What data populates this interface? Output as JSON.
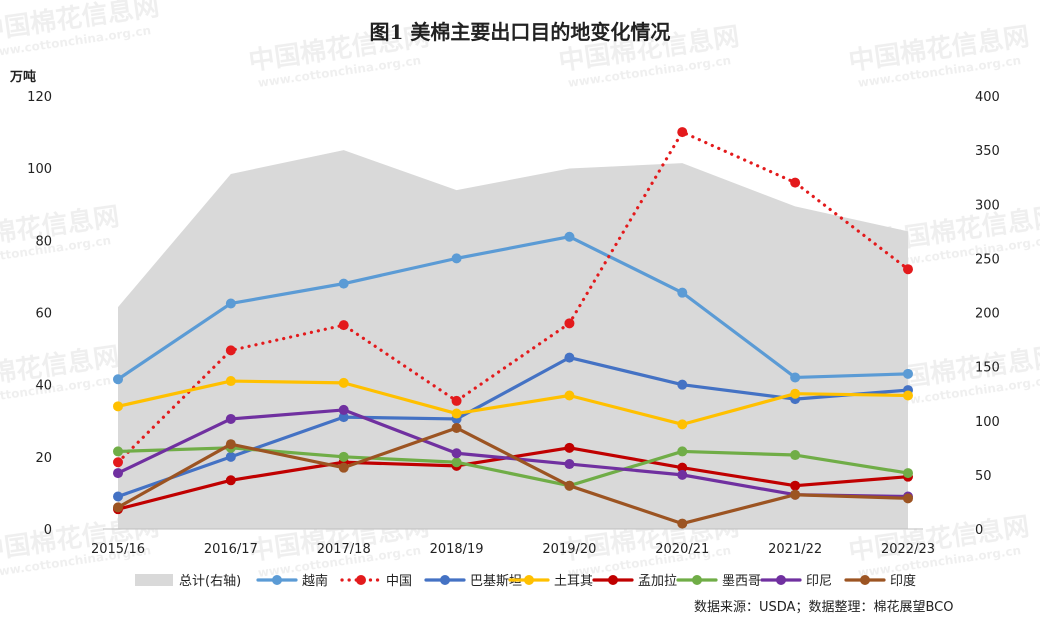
{
  "chart_data": {
    "type": "line",
    "title": "图1 美棉主要出口目的地变化情况",
    "ylabel": "万吨",
    "ylim": [
      0,
      120
    ],
    "yticks": [
      0,
      20,
      40,
      60,
      80,
      100,
      120
    ],
    "y2lim": [
      0,
      400
    ],
    "y2ticks": [
      0,
      50,
      100,
      150,
      200,
      250,
      300,
      350,
      400
    ],
    "categories": [
      "2015/16",
      "2016/17",
      "2017/18",
      "2018/19",
      "2019/20",
      "2020/21",
      "2021/22",
      "2022/23"
    ],
    "area": {
      "name": "总计(右轴)",
      "color": "#d9d9d9",
      "values": [
        205,
        328,
        350,
        313,
        333,
        338,
        298,
        275
      ]
    },
    "series": [
      {
        "name": "越南",
        "color": "#5b9bd5",
        "style": "solid",
        "values": [
          41.5,
          62.5,
          68,
          75,
          81,
          65.5,
          42,
          43
        ]
      },
      {
        "name": "中国",
        "color": "#e31a1c",
        "style": "dotted",
        "values": [
          18.5,
          49.5,
          56.5,
          35.5,
          57,
          110,
          96,
          72
        ]
      },
      {
        "name": "巴基斯坦",
        "color": "#4472c4",
        "style": "solid",
        "values": [
          9,
          20,
          31,
          30.5,
          47.5,
          40,
          36,
          38.5
        ]
      },
      {
        "name": "土耳其",
        "color": "#ffc000",
        "style": "solid",
        "values": [
          34,
          41,
          40.5,
          32,
          37,
          29,
          37.5,
          37
        ]
      },
      {
        "name": "孟加拉",
        "color": "#c00000",
        "style": "solid",
        "values": [
          5.5,
          13.5,
          18.5,
          17.5,
          22.5,
          17,
          12,
          14.5
        ]
      },
      {
        "name": "墨西哥",
        "color": "#70ad47",
        "style": "solid",
        "values": [
          21.5,
          22.5,
          20,
          18.5,
          12,
          21.5,
          20.5,
          15.5
        ]
      },
      {
        "name": "印尼",
        "color": "#7030a0",
        "style": "solid",
        "values": [
          15.5,
          30.5,
          33,
          21,
          18,
          15,
          9.5,
          9
        ]
      },
      {
        "name": "印度",
        "color": "#9c5422",
        "style": "solid",
        "values": [
          6,
          23.5,
          17,
          28,
          12,
          1.5,
          9.5,
          8.5
        ]
      }
    ],
    "legend": "bottom",
    "grid": false
  },
  "source_text": "数据来源：USDA；数据整理：棉花展望BCO",
  "watermark": {
    "brand": "中国棉花信息网",
    "url": "www.cottonchina.org.cn"
  }
}
